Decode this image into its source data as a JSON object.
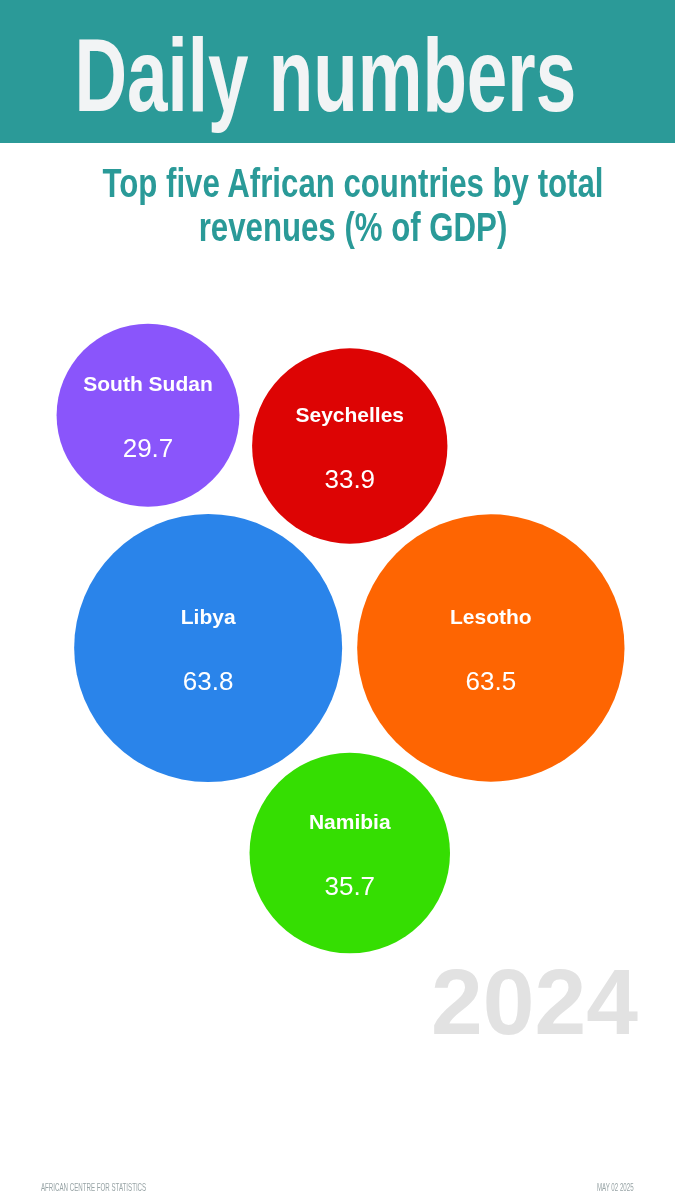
{
  "chart_data": {
    "type": "other",
    "title": "Daily numbers",
    "subtitle": "Top five African countries by total revenues (% of GDP)",
    "categories": [
      "South Sudan",
      "Seychelles",
      "Libya",
      "Lesotho",
      "Namibia"
    ],
    "values": [
      29.7,
      33.9,
      63.8,
      63.5,
      35.7
    ],
    "colors": [
      "#8a55fb",
      "#dd0404",
      "#2a84ea",
      "#fe6502",
      "#35de02"
    ],
    "data_labels": true,
    "annotations": [
      "2024",
      "AFRICAN CENTRE FOR STATISTICS",
      "MAY 02 2025"
    ]
  }
}
